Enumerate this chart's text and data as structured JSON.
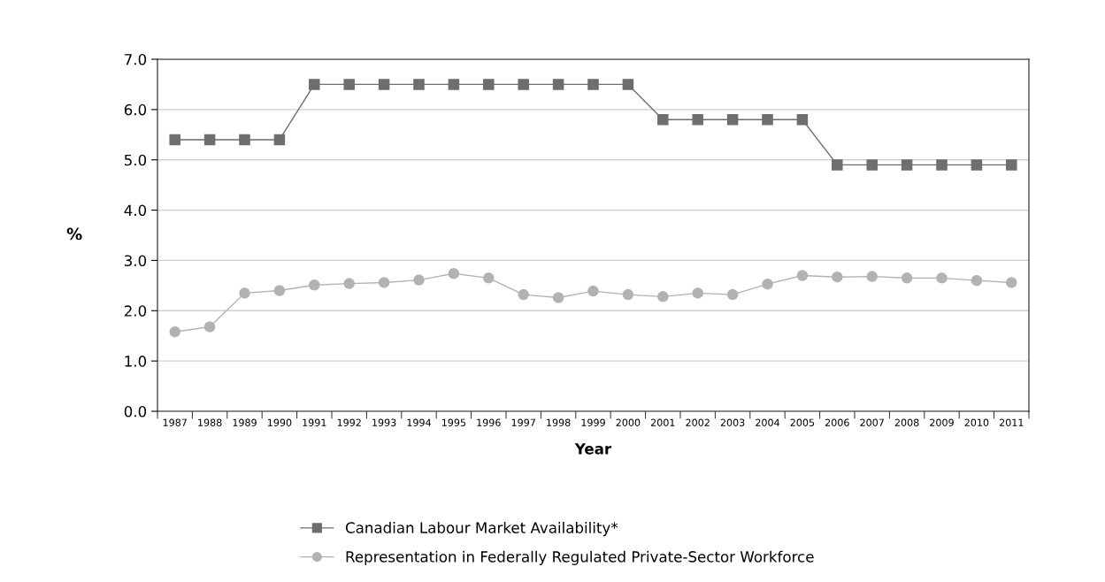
{
  "chart_data": {
    "type": "line",
    "xlabel": "Year",
    "ylabel": "%",
    "categories": [
      "1987",
      "1988",
      "1989",
      "1990",
      "1991",
      "1992",
      "1993",
      "1994",
      "1995",
      "1996",
      "1997",
      "1998",
      "1999",
      "2000",
      "2001",
      "2002",
      "2003",
      "2004",
      "2005",
      "2006",
      "2007",
      "2008",
      "2009",
      "2010",
      "2011"
    ],
    "series": [
      {
        "name": "Canadian Labour Market Availability*",
        "color": "#6d6e70",
        "marker": "square",
        "values": [
          5.4,
          5.4,
          5.4,
          5.4,
          6.5,
          6.5,
          6.5,
          6.5,
          6.5,
          6.5,
          6.5,
          6.5,
          6.5,
          6.5,
          5.8,
          5.8,
          5.8,
          5.8,
          5.8,
          4.9,
          4.9,
          4.9,
          4.9,
          4.9,
          4.9
        ]
      },
      {
        "name": "Representation in Federally Regulated Private-Sector Workforce",
        "color": "#b0b3b6",
        "marker": "circle",
        "values": [
          1.58,
          1.68,
          2.35,
          2.4,
          2.51,
          2.54,
          2.56,
          2.61,
          2.74,
          2.65,
          2.32,
          2.26,
          2.39,
          2.32,
          2.28,
          2.35,
          2.32,
          2.53,
          2.7,
          2.67,
          2.68,
          2.65,
          2.65,
          2.6,
          2.56
        ]
      }
    ],
    "ylim": [
      0,
      7
    ],
    "yticks": [
      {
        "value": 0,
        "label": "0.0"
      },
      {
        "value": 1,
        "label": "1.0"
      },
      {
        "value": 2,
        "label": "2.0"
      },
      {
        "value": 3,
        "label": "3.0"
      },
      {
        "value": 4,
        "label": "4.0"
      },
      {
        "value": 5,
        "label": "5.0"
      },
      {
        "value": 6,
        "label": "6.0"
      },
      {
        "value": 7,
        "label": "7.0"
      }
    ],
    "grid": "y",
    "legend": "bottom"
  }
}
